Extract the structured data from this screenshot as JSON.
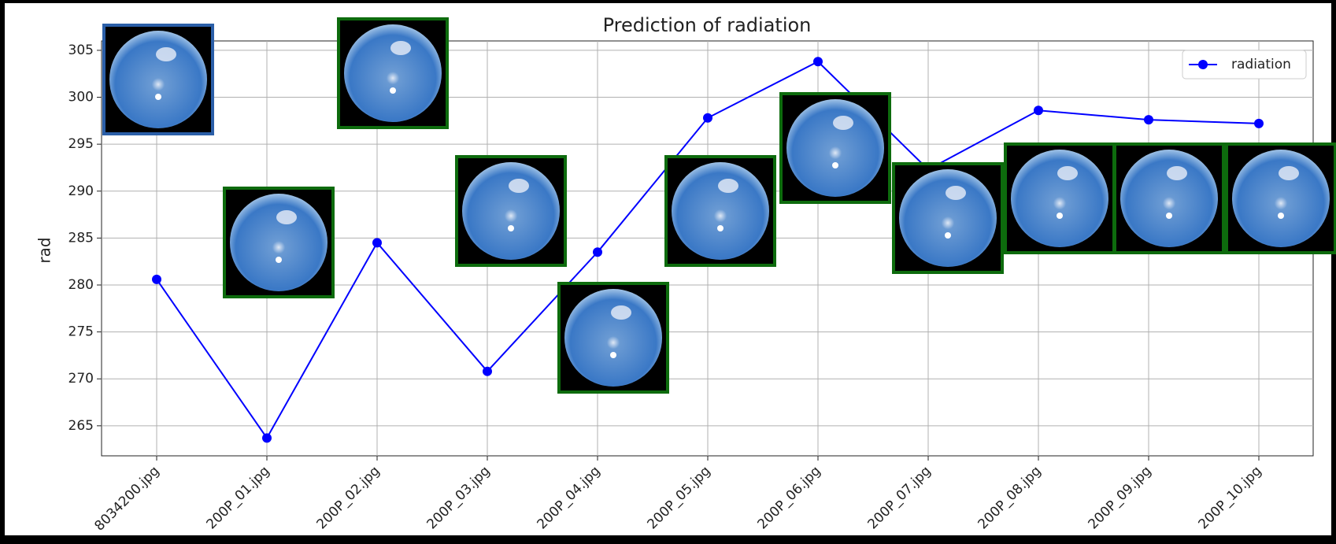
{
  "chart_data": {
    "type": "line",
    "title": "Prediction of radiation",
    "y_label": "rad",
    "categories": [
      "8034200.jpg",
      "200P_01.jpg",
      "200P_02.jpg",
      "200P_03.jpg",
      "200P_04.jpg",
      "200P_05.jpg",
      "200P_06.jpg",
      "200P_07.jpg",
      "200P_08.jpg",
      "200P_09.jpg",
      "200P_10.jpg"
    ],
    "series": [
      {
        "name": "radiation",
        "color": "#0000ff",
        "values": [
          280.6,
          263.7,
          284.5,
          270.8,
          283.5,
          297.8,
          303.8,
          292.3,
          298.6,
          297.6,
          297.2
        ]
      }
    ],
    "ylim": [
      261.8,
      306.0
    ],
    "yticks": [
      265,
      270,
      275,
      280,
      285,
      290,
      295,
      300,
      305
    ],
    "grid": true,
    "legend": "upper right"
  }
}
